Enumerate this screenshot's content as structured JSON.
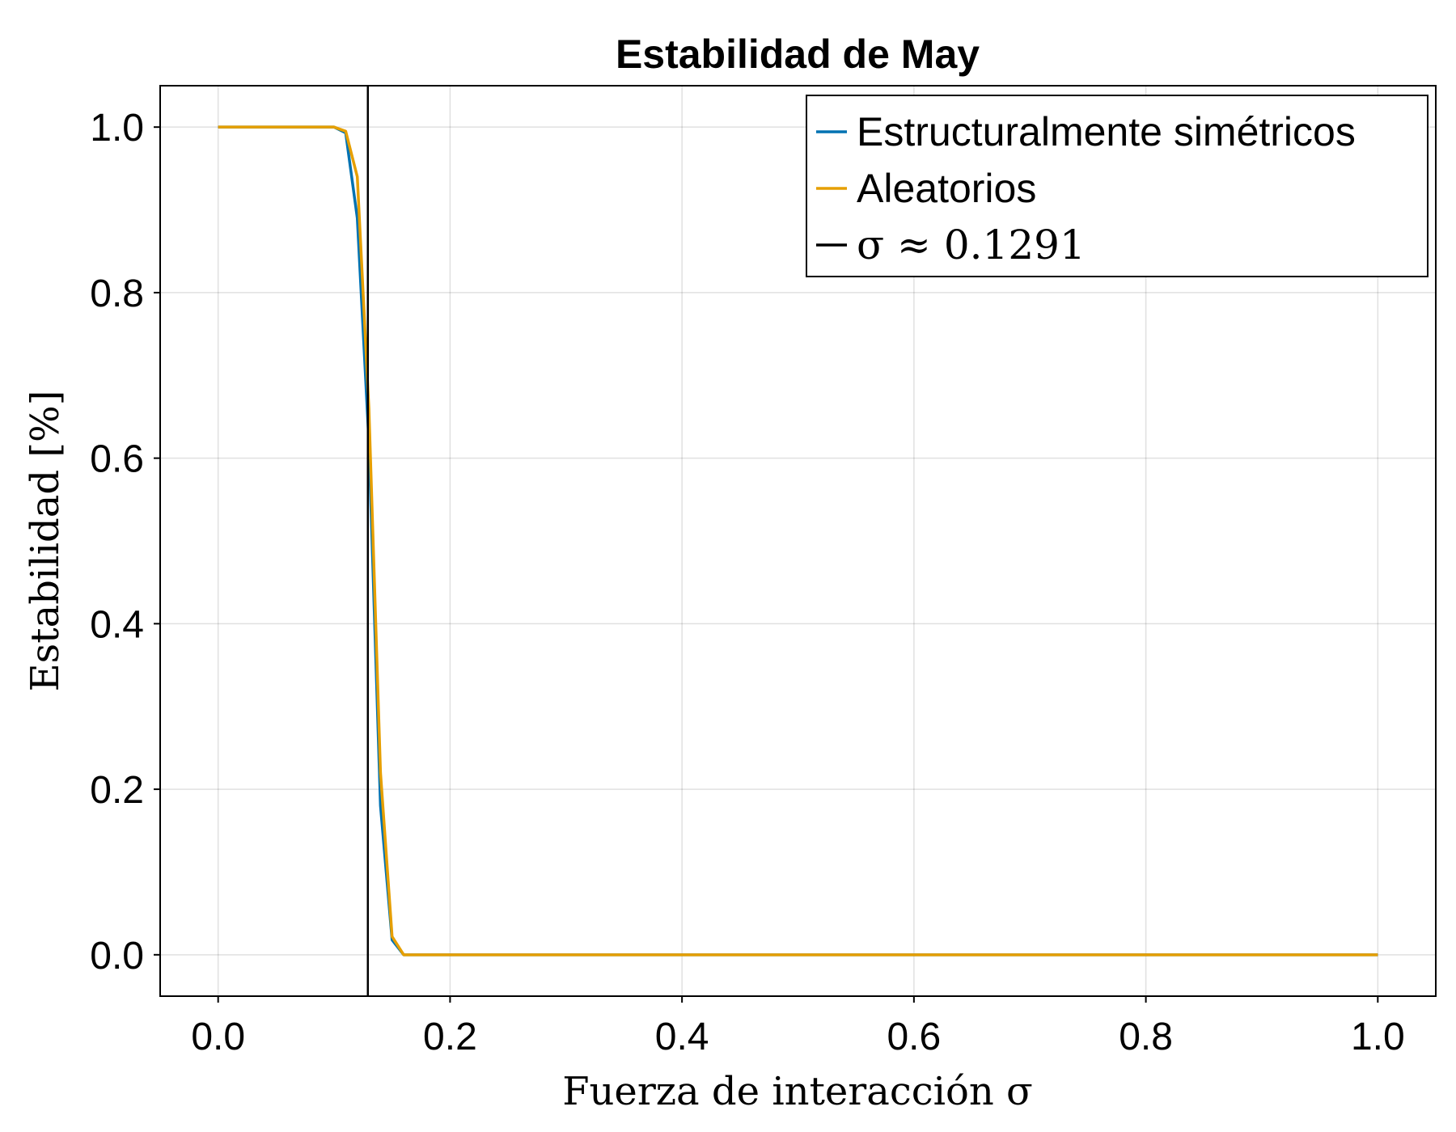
{
  "chart_data": {
    "type": "line",
    "title": "Estabilidad de May",
    "xlabel": "Fuerza de interacción σ",
    "ylabel": "Estabilidad [%]",
    "xlim": [
      -0.05,
      1.05
    ],
    "ylim": [
      -0.05,
      1.05
    ],
    "xticks": [
      0.0,
      0.2,
      0.4,
      0.6,
      0.8,
      1.0
    ],
    "yticks": [
      0.0,
      0.2,
      0.4,
      0.6,
      0.8,
      1.0
    ],
    "xtick_labels": [
      "0.0",
      "0.2",
      "0.4",
      "0.6",
      "0.8",
      "1.0"
    ],
    "ytick_labels": [
      "0.0",
      "0.2",
      "0.4",
      "0.6",
      "0.8",
      "1.0"
    ],
    "grid": true,
    "legend_position": "top-right",
    "series": [
      {
        "name": "Estructuralmente simétricos",
        "color": "#0072b2",
        "x": [
          0.0,
          0.01,
          0.02,
          0.03,
          0.04,
          0.05,
          0.06,
          0.07,
          0.08,
          0.09,
          0.1,
          0.11,
          0.12,
          0.13,
          0.14,
          0.15,
          0.16,
          0.17,
          0.18,
          0.19,
          0.2,
          0.3,
          0.4,
          0.5,
          0.6,
          0.7,
          0.8,
          0.9,
          1.0
        ],
        "y": [
          1.0,
          1.0,
          1.0,
          1.0,
          1.0,
          1.0,
          1.0,
          1.0,
          1.0,
          1.0,
          1.0,
          0.993,
          0.89,
          0.62,
          0.18,
          0.018,
          0.0,
          0.0,
          0.0,
          0.0,
          0.0,
          0.0,
          0.0,
          0.0,
          0.0,
          0.0,
          0.0,
          0.0,
          0.0
        ]
      },
      {
        "name": "Aleatorios",
        "color": "#e69f00",
        "x": [
          0.0,
          0.01,
          0.02,
          0.03,
          0.04,
          0.05,
          0.06,
          0.07,
          0.08,
          0.09,
          0.1,
          0.11,
          0.12,
          0.13,
          0.14,
          0.15,
          0.16,
          0.17,
          0.18,
          0.19,
          0.2,
          0.3,
          0.4,
          0.5,
          0.6,
          0.7,
          0.8,
          0.9,
          1.0
        ],
        "y": [
          1.0,
          1.0,
          1.0,
          1.0,
          1.0,
          1.0,
          1.0,
          1.0,
          1.0,
          1.0,
          1.0,
          0.995,
          0.94,
          0.66,
          0.22,
          0.022,
          0.0,
          0.0,
          0.0,
          0.0,
          0.0,
          0.0,
          0.0,
          0.0,
          0.0,
          0.0,
          0.0,
          0.0,
          0.0
        ]
      }
    ],
    "vline": {
      "name": "σ ≈ 0.1291",
      "x": 0.1291,
      "color": "#000000"
    }
  }
}
